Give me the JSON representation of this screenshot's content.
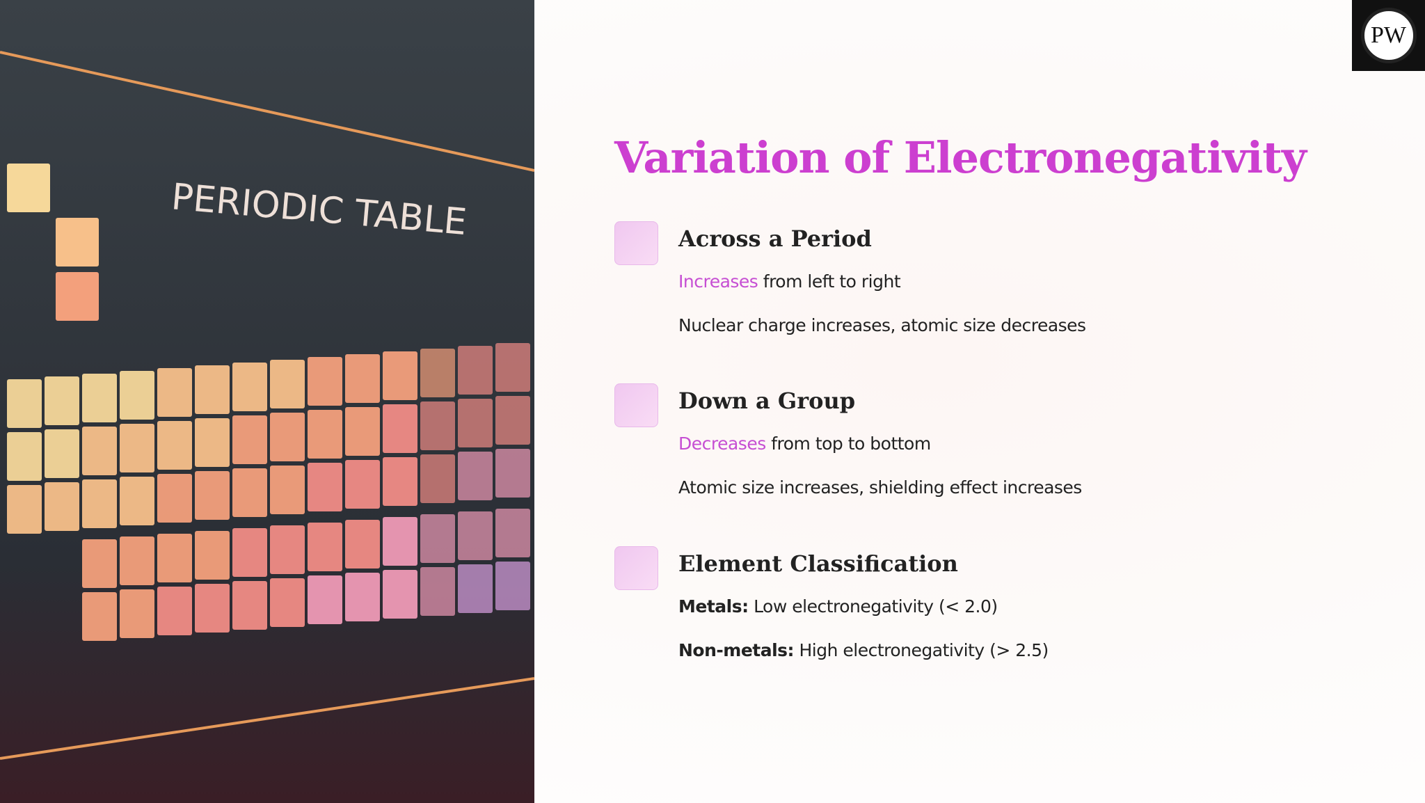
{
  "image": {
    "caption": "PERIODIC TABLE"
  },
  "logo": {
    "text": "PW"
  },
  "title": "Variation of Electronegativity",
  "sections": [
    {
      "heading": "Across a Period",
      "lines": [
        [
          {
            "text": "Increases",
            "style": "highlight"
          },
          {
            "text": "from left to right"
          }
        ],
        [
          {
            "text": "Nuclear charge increases, atomic size decreases"
          }
        ]
      ]
    },
    {
      "heading": "Down a Group",
      "lines": [
        [
          {
            "text": "Decreases",
            "style": "highlight"
          },
          {
            "text": "from top to bottom"
          }
        ],
        [
          {
            "text": "Atomic size increases, shielding effect increases"
          }
        ]
      ]
    },
    {
      "heading": "Element Classification",
      "lines": [
        [
          {
            "text": "Metals:",
            "style": "bold"
          },
          {
            "text": "Low electronegativity (< 2.0)"
          }
        ],
        [
          {
            "text": "Non-metals:",
            "style": "bold"
          },
          {
            "text": "High electronegativity (> 2.5)"
          }
        ]
      ]
    }
  ]
}
